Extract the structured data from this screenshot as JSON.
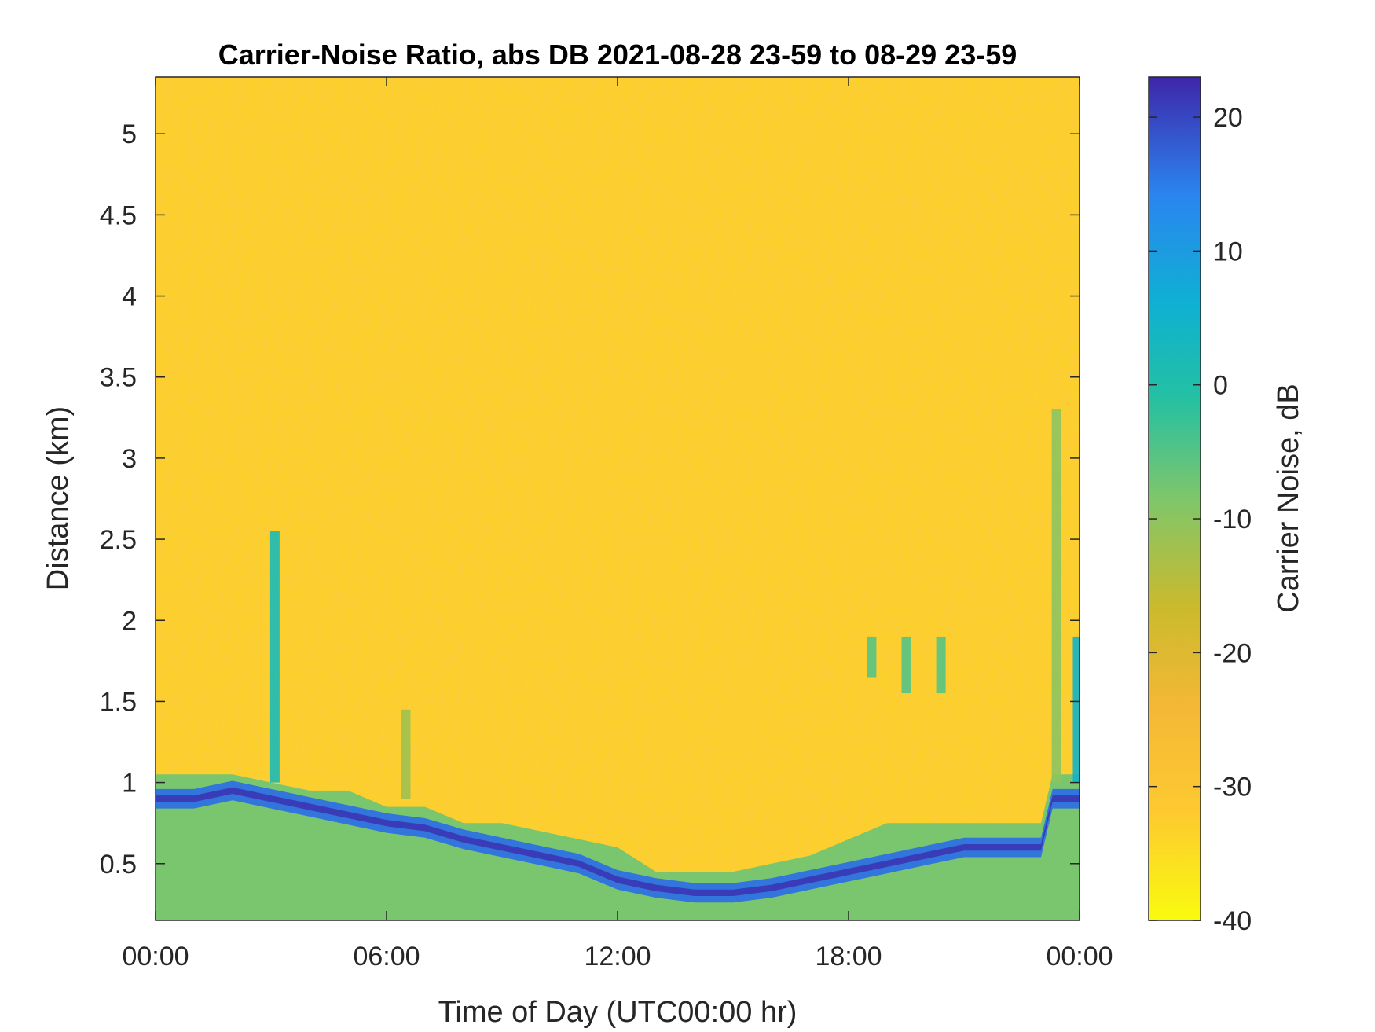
{
  "chart_data": {
    "type": "heatmap",
    "title": "Carrier-Noise Ratio, abs DB 2021-08-28 23-59 to 08-29 23-59",
    "xlabel": "Time of Day (UTC00:00 hr)",
    "ylabel": "Distance (km)",
    "colorbar_label": "Carrier Noise, dB",
    "colormap": "parula",
    "x_ticks": [
      {
        "hours": 0,
        "label": "00:00"
      },
      {
        "hours": 6,
        "label": "06:00"
      },
      {
        "hours": 12,
        "label": "12:00"
      },
      {
        "hours": 18,
        "label": "18:00"
      },
      {
        "hours": 24,
        "label": "00:00"
      }
    ],
    "xlim_hours": [
      0,
      24
    ],
    "y_ticks": [
      0.5,
      1,
      1.5,
      2,
      2.5,
      3,
      3.5,
      4,
      4.5,
      5
    ],
    "y_tick_labels": [
      "0.5",
      "1",
      "1.5",
      "2",
      "2.5",
      "3",
      "3.5",
      "4",
      "4.5",
      "5"
    ],
    "ylim": [
      0.15,
      5.35
    ],
    "clim": [
      -40,
      23
    ],
    "colorbar_ticks": [
      20,
      10,
      0,
      -10,
      -20,
      -30,
      -40
    ],
    "colorbar_tick_labels": [
      "20",
      "10",
      "0",
      "-10",
      "-20",
      "-30",
      "-40"
    ],
    "background_value_db": -33,
    "near_ground_value_db": -8,
    "boundary_layer": {
      "hours": [
        0,
        1,
        2,
        3,
        4,
        5,
        6,
        7,
        8,
        9,
        10,
        11,
        12,
        13,
        14,
        15,
        16,
        17,
        18,
        19,
        20,
        21,
        22,
        23,
        23.3,
        24
      ],
      "top_km": [
        1.05,
        1.05,
        1.05,
        1.0,
        0.95,
        0.95,
        0.85,
        0.85,
        0.75,
        0.75,
        0.7,
        0.65,
        0.6,
        0.45,
        0.45,
        0.45,
        0.5,
        0.55,
        0.65,
        0.75,
        0.75,
        0.75,
        0.75,
        0.75,
        1.05,
        1.05
      ],
      "strong_layer_km": [
        0.9,
        0.9,
        0.95,
        0.9,
        0.85,
        0.8,
        0.75,
        0.72,
        0.65,
        0.6,
        0.55,
        0.5,
        0.4,
        0.35,
        0.32,
        0.32,
        0.35,
        0.4,
        0.45,
        0.5,
        0.55,
        0.6,
        0.6,
        0.6,
        0.9,
        0.9
      ]
    },
    "plumes": [
      {
        "hour": 3.1,
        "bottom_km": 1.0,
        "top_km": 2.55,
        "value_db": 2
      },
      {
        "hour": 6.5,
        "bottom_km": 0.9,
        "top_km": 1.45,
        "value_db": -12
      },
      {
        "hour": 18.6,
        "bottom_km": 1.65,
        "top_km": 1.9,
        "value_db": -5
      },
      {
        "hour": 19.5,
        "bottom_km": 1.55,
        "top_km": 1.9,
        "value_db": -5
      },
      {
        "hour": 20.4,
        "bottom_km": 1.55,
        "top_km": 1.9,
        "value_db": -5
      },
      {
        "hour": 23.4,
        "bottom_km": 1.0,
        "top_km": 3.3,
        "value_db": -10
      },
      {
        "hour": 23.95,
        "bottom_km": 1.0,
        "top_km": 1.9,
        "value_db": 5
      }
    ]
  }
}
